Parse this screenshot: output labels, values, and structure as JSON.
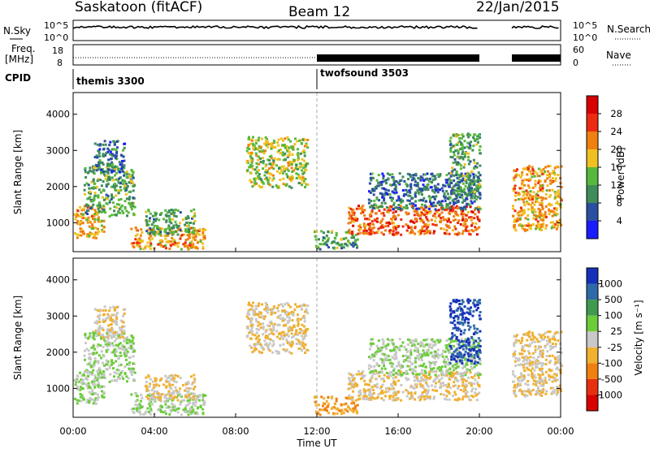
{
  "header": {
    "station": "Saskatoon (fitACF)",
    "beam": "Beam 12",
    "date": "22/Jan/2015"
  },
  "top_panels": {
    "nsky_label": "N.Sky",
    "nsky_ticks": [
      "10^5",
      "10^0"
    ],
    "nsearch_label": "N.Search",
    "nsearch_ticks": [
      "10^5",
      "10^0"
    ],
    "freq_label_line1": "Freq.",
    "freq_label_line2": "[MHz]",
    "freq_ticks": [
      "18",
      "8"
    ],
    "nave_label": "Nave",
    "nave_ticks": [
      "60",
      "0"
    ],
    "cpid_label": "CPID",
    "cpid_segments": [
      {
        "name": "themis 3300",
        "start_hour": 0,
        "end_hour": 12
      },
      {
        "name": "twofsound 3503",
        "start_hour": 12,
        "end_hour": 20
      }
    ]
  },
  "axes": {
    "x_ticks": [
      "00:00",
      "04:00",
      "08:00",
      "12:00",
      "16:00",
      "20:00",
      "00:00"
    ],
    "x_tick_hours": [
      0,
      4,
      8,
      12,
      16,
      20,
      24
    ],
    "xlabel": "Time UT",
    "ylabel": "Slant Range [km]",
    "y_ticks": [
      "1000",
      "2000",
      "3000",
      "4000"
    ],
    "y_tick_values": [
      1000,
      2000,
      3000,
      4000
    ],
    "ylim": [
      200,
      4600
    ],
    "xlim": [
      0,
      24
    ]
  },
  "power_scale": {
    "title": "Power [dB]",
    "labels": [
      "4",
      "8",
      "12",
      "16",
      "20",
      "24",
      "28"
    ],
    "colors": [
      "#1b1bff",
      "#2a4fa0",
      "#3f8c5a",
      "#58b83c",
      "#f0c020",
      "#f08010",
      "#ee2a10",
      "#d80000"
    ]
  },
  "velocity_scale": {
    "title": "Velocity [m s⁻¹]",
    "labels": [
      "1000",
      "500",
      "100",
      "25",
      "-25",
      "-100",
      "-500",
      "-1000"
    ],
    "colors": [
      "#1530b8",
      "#2f6aa8",
      "#3f9a50",
      "#6ccc3a",
      "#c8c8c8",
      "#f0b030",
      "#f08010",
      "#e83010",
      "#d80000"
    ]
  },
  "chart_data": {
    "type": "heatmap",
    "panels": [
      "power",
      "velocity"
    ],
    "data_gaps_hours": [
      [
        20.0,
        21.6
      ]
    ],
    "scatter_regions": [
      {
        "t0": 0.0,
        "t1": 1.5,
        "r0": 600,
        "r1": 1500,
        "power": 20,
        "velocity": 25
      },
      {
        "t0": 0.5,
        "t1": 3.0,
        "r0": 1200,
        "r1": 2600,
        "power": 12,
        "velocity": 25
      },
      {
        "t0": 1.0,
        "t1": 2.5,
        "r0": 2400,
        "r1": 3300,
        "power": 8,
        "velocity": -25
      },
      {
        "t0": 2.8,
        "t1": 6.5,
        "r0": 300,
        "r1": 900,
        "power": 20,
        "velocity": 25
      },
      {
        "t0": 3.5,
        "t1": 6.0,
        "r0": 700,
        "r1": 1400,
        "power": 12,
        "velocity": -25
      },
      {
        "t0": 8.5,
        "t1": 11.5,
        "r0": 2000,
        "r1": 3400,
        "power": 16,
        "velocity": -25
      },
      {
        "t0": 11.8,
        "t1": 14.0,
        "r0": 300,
        "r1": 800,
        "power": 12,
        "velocity": -100
      },
      {
        "t0": 13.5,
        "t1": 20.0,
        "r0": 700,
        "r1": 1500,
        "power": 24,
        "velocity": -25
      },
      {
        "t0": 14.5,
        "t1": 20.0,
        "r0": 1400,
        "r1": 2400,
        "power": 8,
        "velocity": 25
      },
      {
        "t0": 18.5,
        "t1": 20.0,
        "r0": 1700,
        "r1": 3500,
        "power": 12,
        "velocity": 1000
      },
      {
        "t0": 21.6,
        "t1": 24.0,
        "r0": 800,
        "r1": 2600,
        "power": 20,
        "velocity": -25
      }
    ]
  }
}
